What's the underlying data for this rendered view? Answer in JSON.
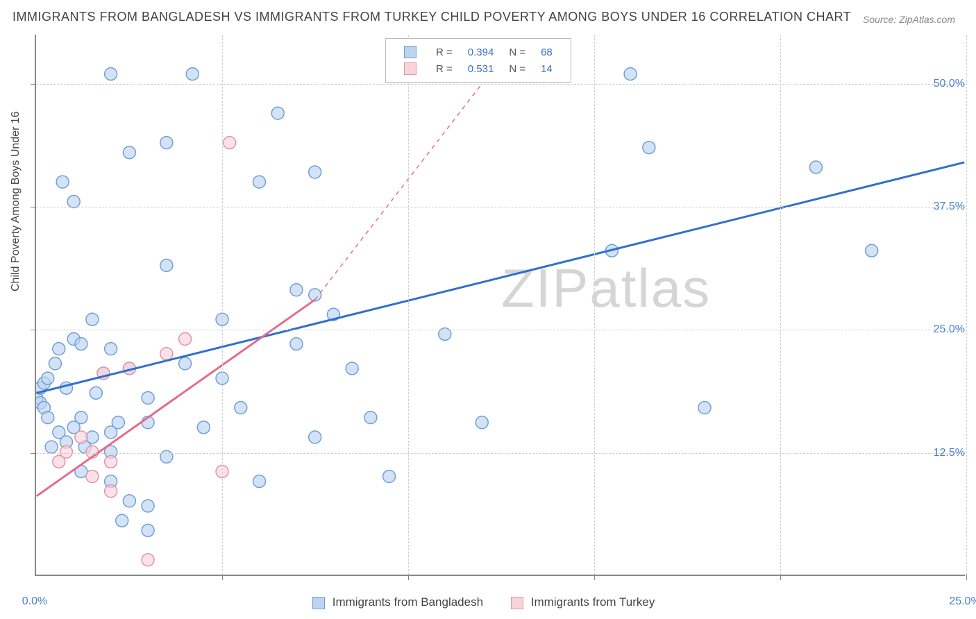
{
  "title": "IMMIGRANTS FROM BANGLADESH VS IMMIGRANTS FROM TURKEY CHILD POVERTY AMONG BOYS UNDER 16 CORRELATION CHART",
  "source": "Source: ZipAtlas.com",
  "watermark": "ZIPatlas",
  "ylabel": "Child Poverty Among Boys Under 16",
  "chart": {
    "type": "scatter",
    "xlim": [
      0,
      25
    ],
    "ylim": [
      0,
      55
    ],
    "xtick_labels": [
      {
        "v": 0,
        "t": "0.0%"
      },
      {
        "v": 25,
        "t": "25.0%"
      }
    ],
    "xtick_minor": [
      5,
      10,
      15,
      20
    ],
    "ytick_labels": [
      {
        "v": 12.5,
        "t": "12.5%"
      },
      {
        "v": 25,
        "t": "25.0%"
      },
      {
        "v": 37.5,
        "t": "37.5%"
      },
      {
        "v": 50,
        "t": "50.0%"
      }
    ],
    "grid_color": "#d0d0d0",
    "background_color": "#ffffff",
    "axis_color": "#888888",
    "series": [
      {
        "key": "bangladesh",
        "label": "Immigrants from Bangladesh",
        "marker_fill": "#bcd4ef",
        "marker_stroke": "#6f9fd8",
        "line_color": "#2f6fd0",
        "line_dash": "none",
        "R": "0.394",
        "N": "68",
        "regression": {
          "x1": 0,
          "y1": 18.5,
          "x2": 25,
          "y2": 42
        },
        "points": [
          [
            0.0,
            18.0
          ],
          [
            0.1,
            17.5
          ],
          [
            0.1,
            19.0
          ],
          [
            0.2,
            17.0
          ],
          [
            0.2,
            19.5
          ],
          [
            0.3,
            16.0
          ],
          [
            0.3,
            20.0
          ],
          [
            0.4,
            13.0
          ],
          [
            0.5,
            21.5
          ],
          [
            0.6,
            14.5
          ],
          [
            0.6,
            23.0
          ],
          [
            0.7,
            40.0
          ],
          [
            0.8,
            13.5
          ],
          [
            0.8,
            19.0
          ],
          [
            1.0,
            15.0
          ],
          [
            1.0,
            24.0
          ],
          [
            1.0,
            38.0
          ],
          [
            1.2,
            10.5
          ],
          [
            1.2,
            16.0
          ],
          [
            1.2,
            23.5
          ],
          [
            1.3,
            13.0
          ],
          [
            1.5,
            14.0
          ],
          [
            1.5,
            26.0
          ],
          [
            1.6,
            18.5
          ],
          [
            1.8,
            20.5
          ],
          [
            2.0,
            9.5
          ],
          [
            2.0,
            12.5
          ],
          [
            2.0,
            14.5
          ],
          [
            2.0,
            23.0
          ],
          [
            2.0,
            51.0
          ],
          [
            2.2,
            15.5
          ],
          [
            2.3,
            5.5
          ],
          [
            2.5,
            7.5
          ],
          [
            2.5,
            21.0
          ],
          [
            2.5,
            43.0
          ],
          [
            3.0,
            4.5
          ],
          [
            3.0,
            7.0
          ],
          [
            3.0,
            15.5
          ],
          [
            3.0,
            18.0
          ],
          [
            3.5,
            12.0
          ],
          [
            3.5,
            31.5
          ],
          [
            3.5,
            44.0
          ],
          [
            4.0,
            21.5
          ],
          [
            4.2,
            51.0
          ],
          [
            4.5,
            15.0
          ],
          [
            5.0,
            20.0
          ],
          [
            5.0,
            26.0
          ],
          [
            5.5,
            17.0
          ],
          [
            6.0,
            9.5
          ],
          [
            6.0,
            40.0
          ],
          [
            6.5,
            47.0
          ],
          [
            7.0,
            23.5
          ],
          [
            7.0,
            29.0
          ],
          [
            7.5,
            14.0
          ],
          [
            7.5,
            28.5
          ],
          [
            7.5,
            41.0
          ],
          [
            8.0,
            26.5
          ],
          [
            8.5,
            21.0
          ],
          [
            9.0,
            16.0
          ],
          [
            9.5,
            10.0
          ],
          [
            11.0,
            24.5
          ],
          [
            12.0,
            15.5
          ],
          [
            15.5,
            33.0
          ],
          [
            16.0,
            51.0
          ],
          [
            16.5,
            43.5
          ],
          [
            18.0,
            17.0
          ],
          [
            21.0,
            41.5
          ],
          [
            22.5,
            33.0
          ]
        ]
      },
      {
        "key": "turkey",
        "label": "Immigrants from Turkey",
        "marker_fill": "#f7d3db",
        "marker_stroke": "#e293a7",
        "line_color": "#e56c8a",
        "line_dash": "dashed_after_data",
        "R": "0.531",
        "N": "14",
        "regression_solid": {
          "x1": 0,
          "y1": 8.0,
          "x2": 7.5,
          "y2": 28.0
        },
        "regression_dash": {
          "x1": 7.5,
          "y1": 28.0,
          "x2": 12.0,
          "y2": 50.0
        },
        "points": [
          [
            0.6,
            11.5
          ],
          [
            0.8,
            12.5
          ],
          [
            1.2,
            14.0
          ],
          [
            1.5,
            10.0
          ],
          [
            1.5,
            12.5
          ],
          [
            1.8,
            20.5
          ],
          [
            2.0,
            11.5
          ],
          [
            2.0,
            8.5
          ],
          [
            2.5,
            21.0
          ],
          [
            3.0,
            1.5
          ],
          [
            3.5,
            22.5
          ],
          [
            4.0,
            24.0
          ],
          [
            5.0,
            10.5
          ],
          [
            5.2,
            44.0
          ]
        ]
      }
    ],
    "marker_radius": 9,
    "marker_opacity": 0.65
  },
  "legend_top": {
    "rows": [
      {
        "swatch_fill": "#bcd4ef",
        "swatch_stroke": "#6f9fd8",
        "r_label": "R =",
        "r_val": "0.394",
        "n_label": "N =",
        "n_val": "68"
      },
      {
        "swatch_fill": "#f7d3db",
        "swatch_stroke": "#e293a7",
        "r_label": "R =",
        "r_val": "0.531",
        "n_label": "N =",
        "n_val": "14"
      }
    ],
    "val_color": "#3a6fc9",
    "label_color": "#555"
  },
  "legend_bottom": [
    {
      "swatch_fill": "#bcd4ef",
      "swatch_stroke": "#6f9fd8",
      "label": "Immigrants from Bangladesh"
    },
    {
      "swatch_fill": "#f7d3db",
      "swatch_stroke": "#e293a7",
      "label": "Immigrants from Turkey"
    }
  ]
}
